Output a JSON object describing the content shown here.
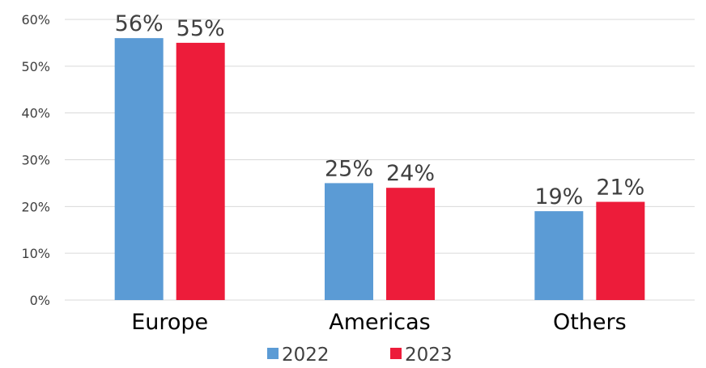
{
  "chart_data": {
    "type": "bar",
    "categories": [
      "Europe",
      "Americas",
      "Others"
    ],
    "series": [
      {
        "name": "2022",
        "color": "#5b9bd5",
        "values": [
          56,
          25,
          19
        ],
        "labels": [
          "56%",
          "25%",
          "19%"
        ]
      },
      {
        "name": "2023",
        "color": "#ed1c3a",
        "values": [
          55,
          24,
          21
        ],
        "labels": [
          "55%",
          "24%",
          "21%"
        ]
      }
    ],
    "ylim": [
      0,
      60
    ],
    "yticks": [
      0,
      10,
      20,
      30,
      40,
      50,
      60
    ],
    "ytick_labels": [
      "0%",
      "10%",
      "20%",
      "30%",
      "40%",
      "50%",
      "60%"
    ],
    "grid": true,
    "legend_position": "bottom"
  }
}
